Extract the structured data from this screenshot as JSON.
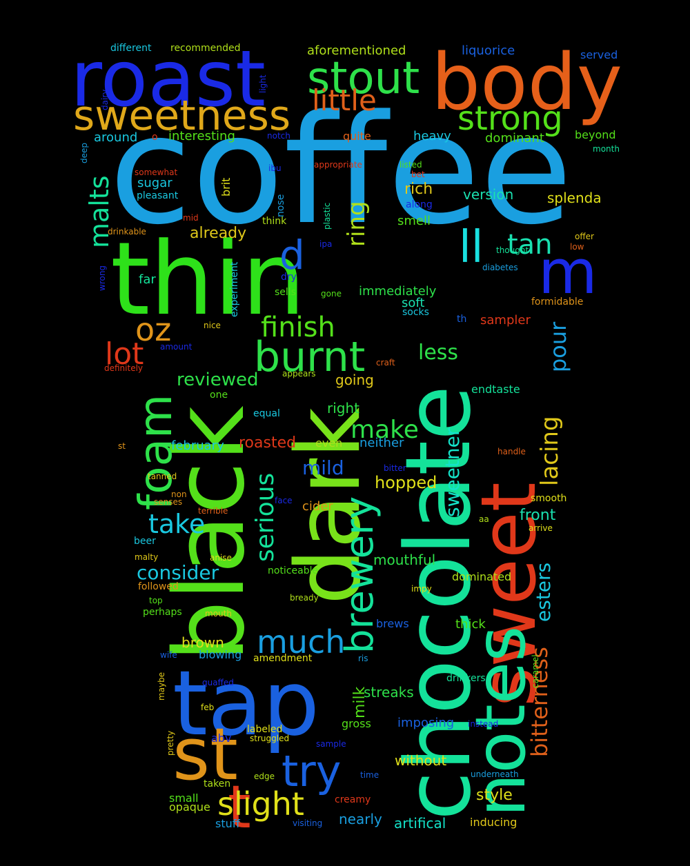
{
  "words": [
    {
      "text": "coffee",
      "color": "#1a9fe0"
    },
    {
      "text": "thin",
      "color": "#2ee11a"
    },
    {
      "text": "black",
      "color": "#54e01a"
    },
    {
      "text": "chocolate",
      "color": "#14e29a"
    },
    {
      "text": "dark",
      "color": "#78e21a"
    },
    {
      "text": "tap",
      "color": "#1a61e0"
    },
    {
      "text": "sweet",
      "color": "#e0381a"
    },
    {
      "text": "notes",
      "color": "#14e29a"
    },
    {
      "text": "roast",
      "color": "#1a2ae6"
    },
    {
      "text": "body",
      "color": "#e6601a"
    },
    {
      "text": "st",
      "color": "#e0941a"
    },
    {
      "text": "t",
      "color": "#e0381a"
    },
    {
      "text": "sweetness",
      "color": "#e0a81a"
    },
    {
      "text": "stout",
      "color": "#2ee14a"
    },
    {
      "text": "little",
      "color": "#e0601a"
    },
    {
      "text": "strong",
      "color": "#54e01a"
    },
    {
      "text": "burnt",
      "color": "#2ee14a"
    },
    {
      "text": "foam",
      "color": "#2ee14a"
    },
    {
      "text": "brewery",
      "color": "#14e29a"
    },
    {
      "text": "m",
      "color": "#1a2ae6"
    },
    {
      "text": "ll",
      "color": "#1ae0e0"
    },
    {
      "text": "d",
      "color": "#1a61e0"
    },
    {
      "text": "tan",
      "color": "#1ae0b0"
    },
    {
      "text": "oz",
      "color": "#e0941a"
    },
    {
      "text": "lot",
      "color": "#e0381a"
    },
    {
      "text": "finish",
      "color": "#54e01a"
    },
    {
      "text": "make",
      "color": "#2ee14a"
    },
    {
      "text": "try",
      "color": "#1a61e0"
    },
    {
      "text": "slight",
      "color": "#e0e01a"
    },
    {
      "text": "much",
      "color": "#1a9fe0"
    },
    {
      "text": "take",
      "color": "#1ac8e0"
    },
    {
      "text": "serious",
      "color": "#14e29a"
    },
    {
      "text": "malts",
      "color": "#14e29a"
    },
    {
      "text": "ring",
      "color": "#b0e01a"
    },
    {
      "text": "lacing",
      "color": "#e0c81a"
    },
    {
      "text": "bitterness",
      "color": "#e0601a"
    },
    {
      "text": "pour",
      "color": "#1a9fe0"
    },
    {
      "text": "esters",
      "color": "#1ac8e0"
    },
    {
      "text": "reviewed",
      "color": "#2ee14a"
    },
    {
      "text": "consider",
      "color": "#1ac8e0"
    },
    {
      "text": "mild",
      "color": "#1a61e0"
    },
    {
      "text": "less",
      "color": "#2ee14a"
    },
    {
      "text": "hopped",
      "color": "#e0e01a"
    },
    {
      "text": "sweetner",
      "color": "#14e2c8"
    },
    {
      "text": "already",
      "color": "#e0c81a"
    },
    {
      "text": "roasted",
      "color": "#e0381a"
    },
    {
      "text": "milk",
      "color": "#54e01a"
    },
    {
      "text": "brown",
      "color": "#e0e01a"
    },
    {
      "text": "style",
      "color": "#e0e01a"
    },
    {
      "text": "front",
      "color": "#1ae0b0"
    },
    {
      "text": "streaks",
      "color": "#2ee14a"
    },
    {
      "text": "mouthful",
      "color": "#2ee14a"
    },
    {
      "text": "imposing",
      "color": "#1a61e0"
    },
    {
      "text": "nearly",
      "color": "#1a9fe0"
    },
    {
      "text": "artifical",
      "color": "#14e2c8"
    },
    {
      "text": "without",
      "color": "#e0e01a"
    },
    {
      "text": "rich",
      "color": "#e0c81a"
    },
    {
      "text": "version",
      "color": "#1ae0b0"
    },
    {
      "text": "splenda",
      "color": "#e0e01a"
    },
    {
      "text": "smell",
      "color": "#54e01a"
    },
    {
      "text": "soft",
      "color": "#1ae0b0"
    },
    {
      "text": "sampler",
      "color": "#e0381a"
    },
    {
      "text": "going",
      "color": "#e0c81a"
    },
    {
      "text": "right",
      "color": "#2ee14a"
    },
    {
      "text": "neither",
      "color": "#1a9fe0"
    },
    {
      "text": "february",
      "color": "#1ac8e0"
    },
    {
      "text": "even",
      "color": "#b0e01a"
    },
    {
      "text": "cider",
      "color": "#e0941a"
    },
    {
      "text": "immediately",
      "color": "#2ee14a"
    },
    {
      "text": "endtaste",
      "color": "#14e29a"
    },
    {
      "text": "dominated",
      "color": "#b0e01a"
    },
    {
      "text": "thick",
      "color": "#54e01a"
    },
    {
      "text": "blowing",
      "color": "#1a9fe0"
    },
    {
      "text": "brews",
      "color": "#1a61e0"
    },
    {
      "text": "noticeable",
      "color": "#54e01a"
    },
    {
      "text": "amendment",
      "color": "#e0e01a"
    },
    {
      "text": "gross",
      "color": "#54e01a"
    },
    {
      "text": "small",
      "color": "#54e01a"
    },
    {
      "text": "opaque",
      "color": "#b0e01a"
    },
    {
      "text": "stuff",
      "color": "#1a9fe0"
    },
    {
      "text": "inducing",
      "color": "#e0c81a"
    },
    {
      "text": "aforementioned",
      "color": "#b0e01a"
    },
    {
      "text": "liquorice",
      "color": "#1a61e0"
    },
    {
      "text": "served",
      "color": "#1a61e0"
    },
    {
      "text": "different",
      "color": "#1ac8e0"
    },
    {
      "text": "recommended",
      "color": "#b0e01a"
    },
    {
      "text": "light",
      "color": "#1a2ae6"
    },
    {
      "text": "dairy",
      "color": "#1a2ae6"
    },
    {
      "text": "deep",
      "color": "#1a9fe0"
    },
    {
      "text": "around",
      "color": "#1ac8e0"
    },
    {
      "text": "o",
      "color": "#e0381a"
    },
    {
      "text": "interesting",
      "color": "#54e01a"
    },
    {
      "text": "notch",
      "color": "#1a2ae6"
    },
    {
      "text": "quite",
      "color": "#e0601a"
    },
    {
      "text": "heavy",
      "color": "#1ac8e0"
    },
    {
      "text": "dominant",
      "color": "#54e01a"
    },
    {
      "text": "beyond",
      "color": "#54e01a"
    },
    {
      "text": "month",
      "color": "#14e29a"
    },
    {
      "text": "somewhat",
      "color": "#e0381a"
    },
    {
      "text": "ibu",
      "color": "#1a2ae6"
    },
    {
      "text": "appropriate",
      "color": "#e0381a"
    },
    {
      "text": "listed",
      "color": "#54e01a"
    },
    {
      "text": "bet",
      "color": "#e0381a"
    },
    {
      "text": "sugar",
      "color": "#1ac8e0"
    },
    {
      "text": "brit",
      "color": "#e0e01a"
    },
    {
      "text": "nose",
      "color": "#1a9fe0"
    },
    {
      "text": "plastic",
      "color": "#14e29a"
    },
    {
      "text": "along",
      "color": "#1a2ae6"
    },
    {
      "text": "pleasant",
      "color": "#1ac8e0"
    },
    {
      "text": "mid",
      "color": "#e0381a"
    },
    {
      "text": "think",
      "color": "#b0e01a"
    },
    {
      "text": "offer",
      "color": "#e0c81a"
    },
    {
      "text": "low",
      "color": "#e0601a"
    },
    {
      "text": "drinkable",
      "color": "#e0941a"
    },
    {
      "text": "ipa",
      "color": "#1a2ae6"
    },
    {
      "text": "thought",
      "color": "#14e29a"
    },
    {
      "text": "diabetes",
      "color": "#1a9fe0"
    },
    {
      "text": "wrong",
      "color": "#1a2ae6"
    },
    {
      "text": "experiment",
      "color": "#1ac8e0"
    },
    {
      "text": "dry",
      "color": "#1a2ae6"
    },
    {
      "text": "sells",
      "color": "#54e01a"
    },
    {
      "text": "gone",
      "color": "#54e01a"
    },
    {
      "text": "far",
      "color": "#14e29a"
    },
    {
      "text": "formidable",
      "color": "#e0941a"
    },
    {
      "text": "socks",
      "color": "#1ac8e0"
    },
    {
      "text": "th",
      "color": "#1a61e0"
    },
    {
      "text": "nice",
      "color": "#e0c81a"
    },
    {
      "text": "amount",
      "color": "#1a2ae6"
    },
    {
      "text": "definitely",
      "color": "#e0381a"
    },
    {
      "text": "craft",
      "color": "#e0601a"
    },
    {
      "text": "appears",
      "color": "#b0e01a"
    },
    {
      "text": "one",
      "color": "#54e01a"
    },
    {
      "text": "equal",
      "color": "#1ac8e0"
    },
    {
      "text": "st",
      "color": "#e0941a"
    },
    {
      "text": "handle",
      "color": "#e0601a"
    },
    {
      "text": "tanned",
      "color": "#e0c81a"
    },
    {
      "text": "bitter",
      "color": "#1a2ae6"
    },
    {
      "text": "non",
      "color": "#e0941a"
    },
    {
      "text": "senses",
      "color": "#e0941a"
    },
    {
      "text": "face",
      "color": "#1a2ae6"
    },
    {
      "text": "smooth",
      "color": "#e0e01a"
    },
    {
      "text": "terrible",
      "color": "#e0601a"
    },
    {
      "text": "aa",
      "color": "#b0e01a"
    },
    {
      "text": "arrive",
      "color": "#e0e01a"
    },
    {
      "text": "beer",
      "color": "#1ac8e0"
    },
    {
      "text": "anise",
      "color": "#e0e01a"
    },
    {
      "text": "malty",
      "color": "#e0c81a"
    },
    {
      "text": "followed",
      "color": "#e0941a"
    },
    {
      "text": "impy",
      "color": "#e0e01a"
    },
    {
      "text": "top",
      "color": "#54e01a"
    },
    {
      "text": "bready",
      "color": "#b0e01a"
    },
    {
      "text": "perhaps",
      "color": "#54e01a"
    },
    {
      "text": "mouth",
      "color": "#e0c81a"
    },
    {
      "text": "caramel",
      "color": "#54e01a"
    },
    {
      "text": "wife",
      "color": "#1a61e0"
    },
    {
      "text": "ris",
      "color": "#1a9fe0"
    },
    {
      "text": "maybe",
      "color": "#e0c81a"
    },
    {
      "text": "quaffed",
      "color": "#1a2ae6"
    },
    {
      "text": "drinkers",
      "color": "#14e29a"
    },
    {
      "text": "feb",
      "color": "#e0e01a"
    },
    {
      "text": "instead",
      "color": "#1a2ae6"
    },
    {
      "text": "pretty",
      "color": "#e0c81a"
    },
    {
      "text": "labeled",
      "color": "#e0e01a"
    },
    {
      "text": "abv",
      "color": "#1a2ae6"
    },
    {
      "text": "struggled",
      "color": "#e0e01a"
    },
    {
      "text": "sample",
      "color": "#1a2ae6"
    },
    {
      "text": "edge",
      "color": "#b0e01a"
    },
    {
      "text": "time",
      "color": "#1a61e0"
    },
    {
      "text": "underneath",
      "color": "#1a9fe0"
    },
    {
      "text": "taken",
      "color": "#b0e01a"
    },
    {
      "text": "creamy",
      "color": "#e0381a"
    },
    {
      "text": "visiting",
      "color": "#1a61e0"
    }
  ]
}
